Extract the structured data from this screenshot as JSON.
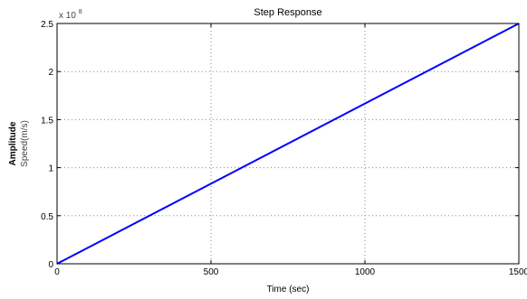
{
  "chart_data": {
    "type": "line",
    "title": "Step Response",
    "xlabel": "Time (sec)",
    "ylabel": "Amplitude",
    "ylabel_sub": "Speed(m/s)",
    "y_multiplier": {
      "base": "x 10",
      "exponent": "8"
    },
    "xlim": [
      0,
      1500
    ],
    "ylim": [
      0,
      2.5
    ],
    "x_ticks": [
      0,
      500,
      1000,
      1500
    ],
    "x_tick_labels": [
      "0",
      "500",
      "1000",
      "1500"
    ],
    "y_ticks": [
      0,
      0.5,
      1,
      1.5,
      2,
      2.5
    ],
    "y_tick_labels": [
      "0",
      "0.5",
      "1",
      "1.5",
      "2",
      "2.5"
    ],
    "grid": true,
    "series": [
      {
        "color": "#0000ff",
        "x": [
          0,
          1500
        ],
        "y": [
          0,
          2.5
        ]
      }
    ]
  }
}
